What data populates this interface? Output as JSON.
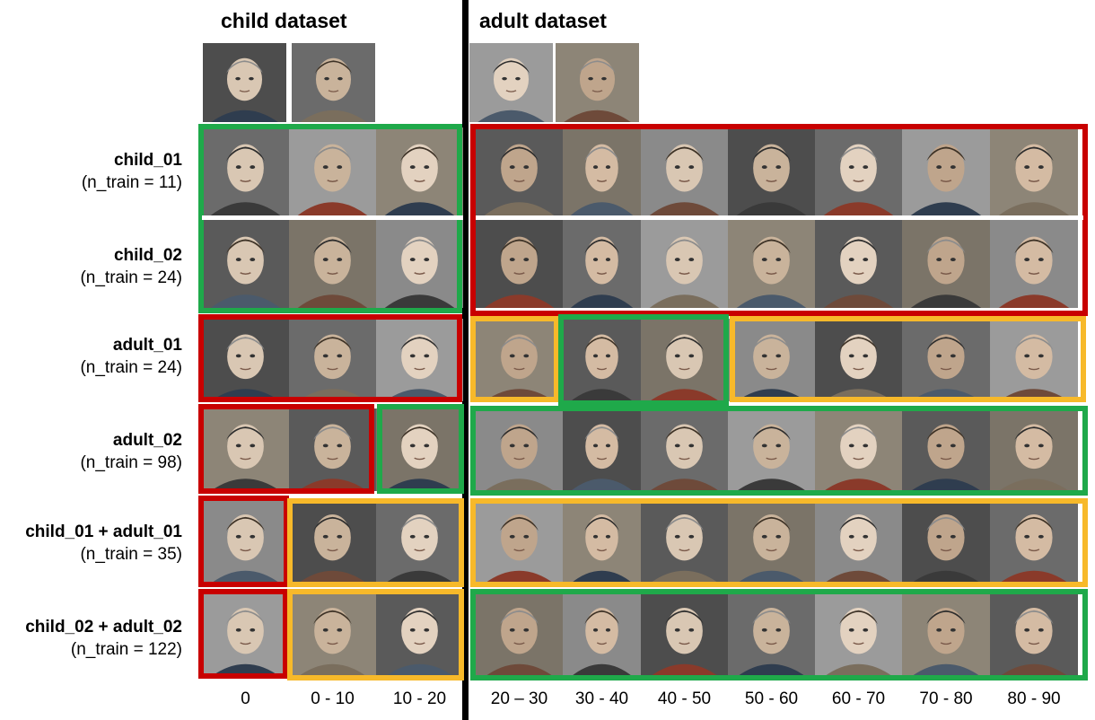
{
  "headers": {
    "child": "child dataset",
    "adult": "adult dataset"
  },
  "rows": [
    {
      "name": "child_01",
      "ntrain": "(n_train = 11)"
    },
    {
      "name": "child_02",
      "ntrain": "(n_train = 24)"
    },
    {
      "name": "adult_01",
      "ntrain": "(n_train = 24)"
    },
    {
      "name": "adult_02",
      "ntrain": "(n_train = 98)"
    },
    {
      "name": "child_01 + adult_01",
      "ntrain": "(n_train = 35)"
    },
    {
      "name": "child_02 + adult_02",
      "ntrain": "(n_train = 122)"
    }
  ],
  "age_bins": [
    "0",
    "0 - 10",
    "10 - 20",
    "20 – 30",
    "30 - 40",
    "40 - 50",
    "50 - 60",
    "60 - 70",
    "70 - 80",
    "80 - 90"
  ],
  "colors": {
    "correct": "#1fa94a",
    "partial": "#f7b92a",
    "wrong": "#c80000",
    "divider": "#000000"
  },
  "icons": [
    "face-photo"
  ]
}
